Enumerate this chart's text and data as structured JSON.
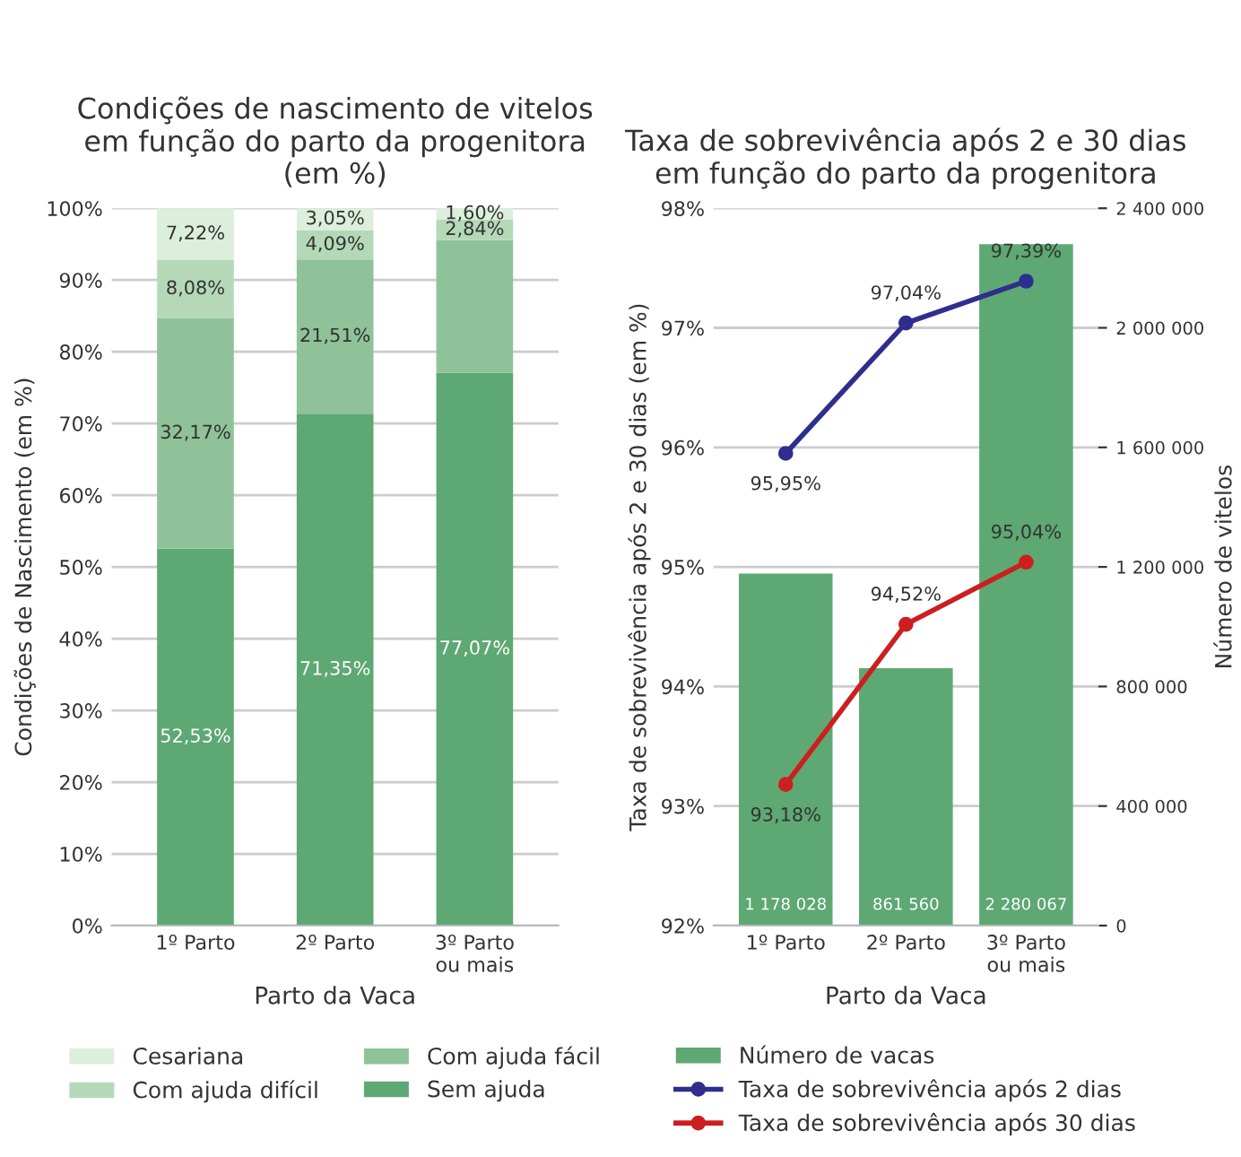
{
  "chart_data": [
    {
      "type": "bar",
      "stacked": true,
      "title": "Condições de nascimento de vitelos\nem função do parto da progenitora\n(em %)",
      "xlabel": "Parto da Vaca",
      "ylabel": "Condições de Nascimento (em %)",
      "categories": [
        "1º Parto",
        "2º Parto",
        "3º Parto\nou mais"
      ],
      "series": [
        {
          "name": "Sem ajuda",
          "color": "#5ea874",
          "values": [
            52.53,
            71.35,
            77.07
          ],
          "value_labels": [
            "52,53%",
            "71,35%",
            "77,07%"
          ]
        },
        {
          "name": "Com ajuda fácil",
          "color": "#8fc298",
          "values": [
            32.17,
            21.51,
            18.5
          ],
          "value_labels": [
            "32,17%",
            "21,51%",
            null
          ]
        },
        {
          "name": "Com ajuda difícil",
          "color": "#b5d9b8",
          "values": [
            8.08,
            4.09,
            2.84
          ],
          "value_labels": [
            "8,08%",
            "4,09%",
            "2,84%"
          ]
        },
        {
          "name": "Cesariana",
          "color": "#dcefdc",
          "values": [
            7.22,
            3.05,
            1.6
          ],
          "value_labels": [
            "7,22%",
            "3,05%",
            "1,60%"
          ]
        }
      ],
      "ylim": [
        0,
        100
      ],
      "yticks": [
        {
          "value": 0,
          "label": "0%"
        },
        {
          "value": 10,
          "label": "10%"
        },
        {
          "value": 20,
          "label": "20%"
        },
        {
          "value": 30,
          "label": "30%"
        },
        {
          "value": 40,
          "label": "40%"
        },
        {
          "value": 50,
          "label": "50%"
        },
        {
          "value": 60,
          "label": "60%"
        },
        {
          "value": 70,
          "label": "70%"
        },
        {
          "value": 80,
          "label": "80%"
        },
        {
          "value": 90,
          "label": "90%"
        },
        {
          "value": 100,
          "label": "100%"
        }
      ],
      "grid": "y",
      "legend": "bottom"
    },
    {
      "type": "line",
      "title": "Taxa de sobrevivência após 2 e 30 dias\nem função do parto da progenitora",
      "xlabel": "Parto da Vaca",
      "ylabel": "Taxa de sobrevivência após 2 e 30 dias (em %)",
      "y2label": "Número de vitelos",
      "categories": [
        "1º Parto",
        "2º Parto",
        "3º Parto\nou mais"
      ],
      "series": [
        {
          "name": "Número de vacas",
          "type": "bar",
          "axis": "y2",
          "color": "#5ea874",
          "values": [
            1178028,
            861560,
            2280067
          ],
          "value_labels": [
            "1 178 028",
            "861 560",
            "2 280 067"
          ]
        },
        {
          "name": "Taxa de sobrevivência após 2 dias",
          "type": "line",
          "axis": "y",
          "color": "#2e2e8f",
          "values": [
            95.95,
            97.04,
            97.39
          ],
          "value_labels": [
            "95,95%",
            "97,04%",
            "97,39%"
          ]
        },
        {
          "name": "Taxa de sobrevivência após 30 dias",
          "type": "line",
          "axis": "y",
          "color": "#cc1f1f",
          "values": [
            93.18,
            94.52,
            95.04
          ],
          "value_labels": [
            "93,18%",
            "94,52%",
            "95,04%"
          ]
        }
      ],
      "ylim": [
        92,
        98
      ],
      "yticks": [
        {
          "value": 92,
          "label": "92%"
        },
        {
          "value": 93,
          "label": "93%"
        },
        {
          "value": 94,
          "label": "94%"
        },
        {
          "value": 95,
          "label": "95%"
        },
        {
          "value": 96,
          "label": "96%"
        },
        {
          "value": 97,
          "label": "97%"
        },
        {
          "value": 98,
          "label": "98%"
        }
      ],
      "y2lim": [
        0,
        2400000
      ],
      "y2ticks": [
        {
          "value": 0,
          "label": "0"
        },
        {
          "value": 400000,
          "label": "400 000"
        },
        {
          "value": 800000,
          "label": "800 000"
        },
        {
          "value": 1200000,
          "label": "1 200 000"
        },
        {
          "value": 1600000,
          "label": "1 600 000"
        },
        {
          "value": 2000000,
          "label": "2 000 000"
        },
        {
          "value": 2400000,
          "label": "2 400 000"
        }
      ],
      "grid": "y",
      "legend": "bottom",
      "marker": "circle",
      "line_style": "solid"
    }
  ]
}
